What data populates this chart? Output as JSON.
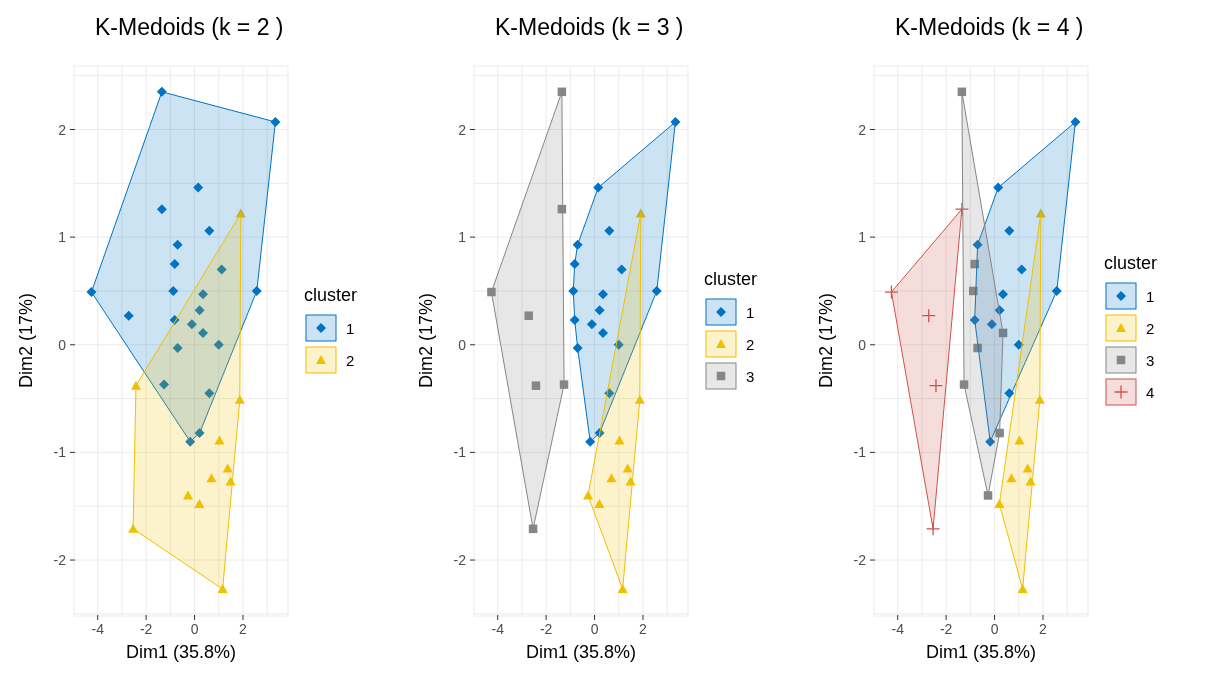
{
  "chart_data": [
    {
      "type": "scatter",
      "title": "K-Medoids (k = 2 )",
      "xlabel": "Dim1 (35.8%)",
      "ylabel": "Dim2 (17%)",
      "legend_title": "cluster",
      "legend": "right",
      "grid": true,
      "xlim": [
        -4.98,
        3.86
      ],
      "ylim": [
        -2.52,
        2.59
      ],
      "xticks": [
        -4,
        {
          "value": -3,
          "label": null
        },
        -2,
        {
          "value": -1,
          "label": null
        },
        0,
        {
          "value": 1,
          "label": null
        },
        2,
        {
          "value": 3,
          "label": null
        }
      ],
      "yticks": [
        {
          "value": -2.5,
          "label": null
        },
        -2,
        {
          "value": -1.5,
          "label": null
        },
        -1,
        {
          "value": -0.5,
          "label": null
        },
        0,
        {
          "value": 0.5,
          "label": null
        },
        1,
        {
          "value": 1.5,
          "label": null
        },
        2,
        {
          "value": 2.5,
          "label": null
        }
      ],
      "series": [
        {
          "name": "1",
          "color": "#0073c2",
          "marker": "diamond",
          "x": [
            -1.35,
            3.34,
            0.15,
            -1.35,
            0.61,
            -0.7,
            -0.82,
            1.12,
            -4.26,
            -0.88,
            2.57,
            0.35,
            -2.72,
            0.21,
            -0.82,
            -0.11,
            0.35,
            -0.7,
            1.0,
            -1.26,
            0.61,
            0.21,
            -0.18
          ],
          "values": [
            2.35,
            2.07,
            1.46,
            1.26,
            1.06,
            0.93,
            0.75,
            0.7,
            0.49,
            0.5,
            0.5,
            0.47,
            0.27,
            0.32,
            0.23,
            0.19,
            0.11,
            -0.03,
            0.0,
            -0.37,
            -0.45,
            -0.82,
            -0.9
          ]
        },
        {
          "name": "2",
          "color": "#efc000",
          "marker": "triangle",
          "x": [
            1.91,
            -2.42,
            1.87,
            1.03,
            1.37,
            0.7,
            1.49,
            -0.27,
            0.2,
            -2.54,
            1.16
          ],
          "values": [
            1.22,
            -0.38,
            -0.51,
            -0.89,
            -1.15,
            -1.24,
            -1.27,
            -1.4,
            -1.48,
            -1.71,
            -2.27
          ]
        }
      ]
    },
    {
      "type": "scatter",
      "title": "K-Medoids (k = 3 )",
      "xlabel": "Dim1 (35.8%)",
      "ylabel": "Dim2 (17%)",
      "legend_title": "cluster",
      "legend": "right",
      "grid": true,
      "xlim": [
        -4.98,
        3.86
      ],
      "ylim": [
        -2.52,
        2.59
      ],
      "xticks": [
        -4,
        {
          "value": -3,
          "label": null
        },
        -2,
        {
          "value": -1,
          "label": null
        },
        0,
        {
          "value": 1,
          "label": null
        },
        2,
        {
          "value": 3,
          "label": null
        }
      ],
      "yticks": [
        {
          "value": -2.5,
          "label": null
        },
        -2,
        {
          "value": -1.5,
          "label": null
        },
        -1,
        {
          "value": -0.5,
          "label": null
        },
        0,
        {
          "value": 0.5,
          "label": null
        },
        1,
        {
          "value": 1.5,
          "label": null
        },
        2,
        {
          "value": 2.5,
          "label": null
        }
      ],
      "series": [
        {
          "name": "1",
          "color": "#0073c2",
          "marker": "diamond",
          "x": [
            3.34,
            0.15,
            0.61,
            -0.7,
            -0.82,
            1.12,
            -0.88,
            2.57,
            0.35,
            0.21,
            -0.82,
            -0.11,
            0.35,
            -0.7,
            1.0,
            0.61,
            0.21,
            -0.18
          ],
          "values": [
            2.07,
            1.46,
            1.06,
            0.93,
            0.75,
            0.7,
            0.5,
            0.5,
            0.47,
            0.32,
            0.23,
            0.19,
            0.11,
            -0.03,
            0.0,
            -0.45,
            -0.82,
            -0.9
          ]
        },
        {
          "name": "2",
          "color": "#efc000",
          "marker": "triangle",
          "x": [
            1.91,
            1.87,
            1.03,
            1.37,
            0.7,
            1.49,
            -0.27,
            0.2,
            1.16
          ],
          "values": [
            1.22,
            -0.51,
            -0.89,
            -1.15,
            -1.24,
            -1.27,
            -1.4,
            -1.48,
            -2.27
          ]
        },
        {
          "name": "3",
          "color": "#868686",
          "marker": "square",
          "x": [
            -1.35,
            -1.35,
            -4.26,
            -2.72,
            -1.26,
            -2.42,
            -2.54
          ],
          "values": [
            2.35,
            1.26,
            0.49,
            0.27,
            -0.37,
            -0.38,
            -1.71
          ]
        }
      ]
    },
    {
      "type": "scatter",
      "title": "K-Medoids (k = 4 )",
      "xlabel": "Dim1 (35.8%)",
      "ylabel": "Dim2 (17%)",
      "legend_title": "cluster",
      "legend": "right",
      "grid": true,
      "xlim": [
        -4.98,
        3.86
      ],
      "ylim": [
        -2.52,
        2.59
      ],
      "xticks": [
        -4,
        {
          "value": -3,
          "label": null
        },
        -2,
        {
          "value": -1,
          "label": null
        },
        0,
        {
          "value": 1,
          "label": null
        },
        2,
        {
          "value": 3,
          "label": null
        }
      ],
      "yticks": [
        {
          "value": -2.5,
          "label": null
        },
        -2,
        {
          "value": -1.5,
          "label": null
        },
        -1,
        {
          "value": -0.5,
          "label": null
        },
        0,
        {
          "value": 0.5,
          "label": null
        },
        1,
        {
          "value": 1.5,
          "label": null
        },
        2,
        {
          "value": 2.5,
          "label": null
        }
      ],
      "series": [
        {
          "name": "1",
          "color": "#0073c2",
          "marker": "diamond",
          "x": [
            0.15,
            3.34,
            0.61,
            -0.7,
            1.12,
            2.57,
            0.35,
            0.21,
            -0.82,
            -0.11,
            1.0,
            0.61,
            -0.18
          ],
          "values": [
            1.46,
            2.07,
            1.06,
            0.93,
            0.7,
            0.5,
            0.47,
            0.32,
            0.23,
            0.19,
            0.0,
            -0.45,
            -0.9
          ]
        },
        {
          "name": "2",
          "color": "#efc000",
          "marker": "triangle",
          "x": [
            1.91,
            1.87,
            1.03,
            1.37,
            0.7,
            1.49,
            0.2,
            1.16
          ],
          "values": [
            1.22,
            -0.51,
            -0.89,
            -1.15,
            -1.24,
            -1.27,
            -1.48,
            -2.27
          ]
        },
        {
          "name": "3",
          "color": "#868686",
          "marker": "square",
          "x": [
            -1.35,
            -0.82,
            -0.88,
            0.35,
            -0.7,
            -1.26,
            0.21,
            -0.27
          ],
          "values": [
            2.35,
            0.75,
            0.5,
            0.11,
            -0.03,
            -0.37,
            -0.82,
            -1.4
          ]
        },
        {
          "name": "4",
          "color": "#cd534c",
          "marker": "cross",
          "x": [
            -4.26,
            -1.35,
            -2.72,
            -2.42,
            -2.54
          ],
          "values": [
            0.49,
            1.26,
            0.27,
            -0.38,
            -1.71
          ]
        }
      ]
    }
  ]
}
